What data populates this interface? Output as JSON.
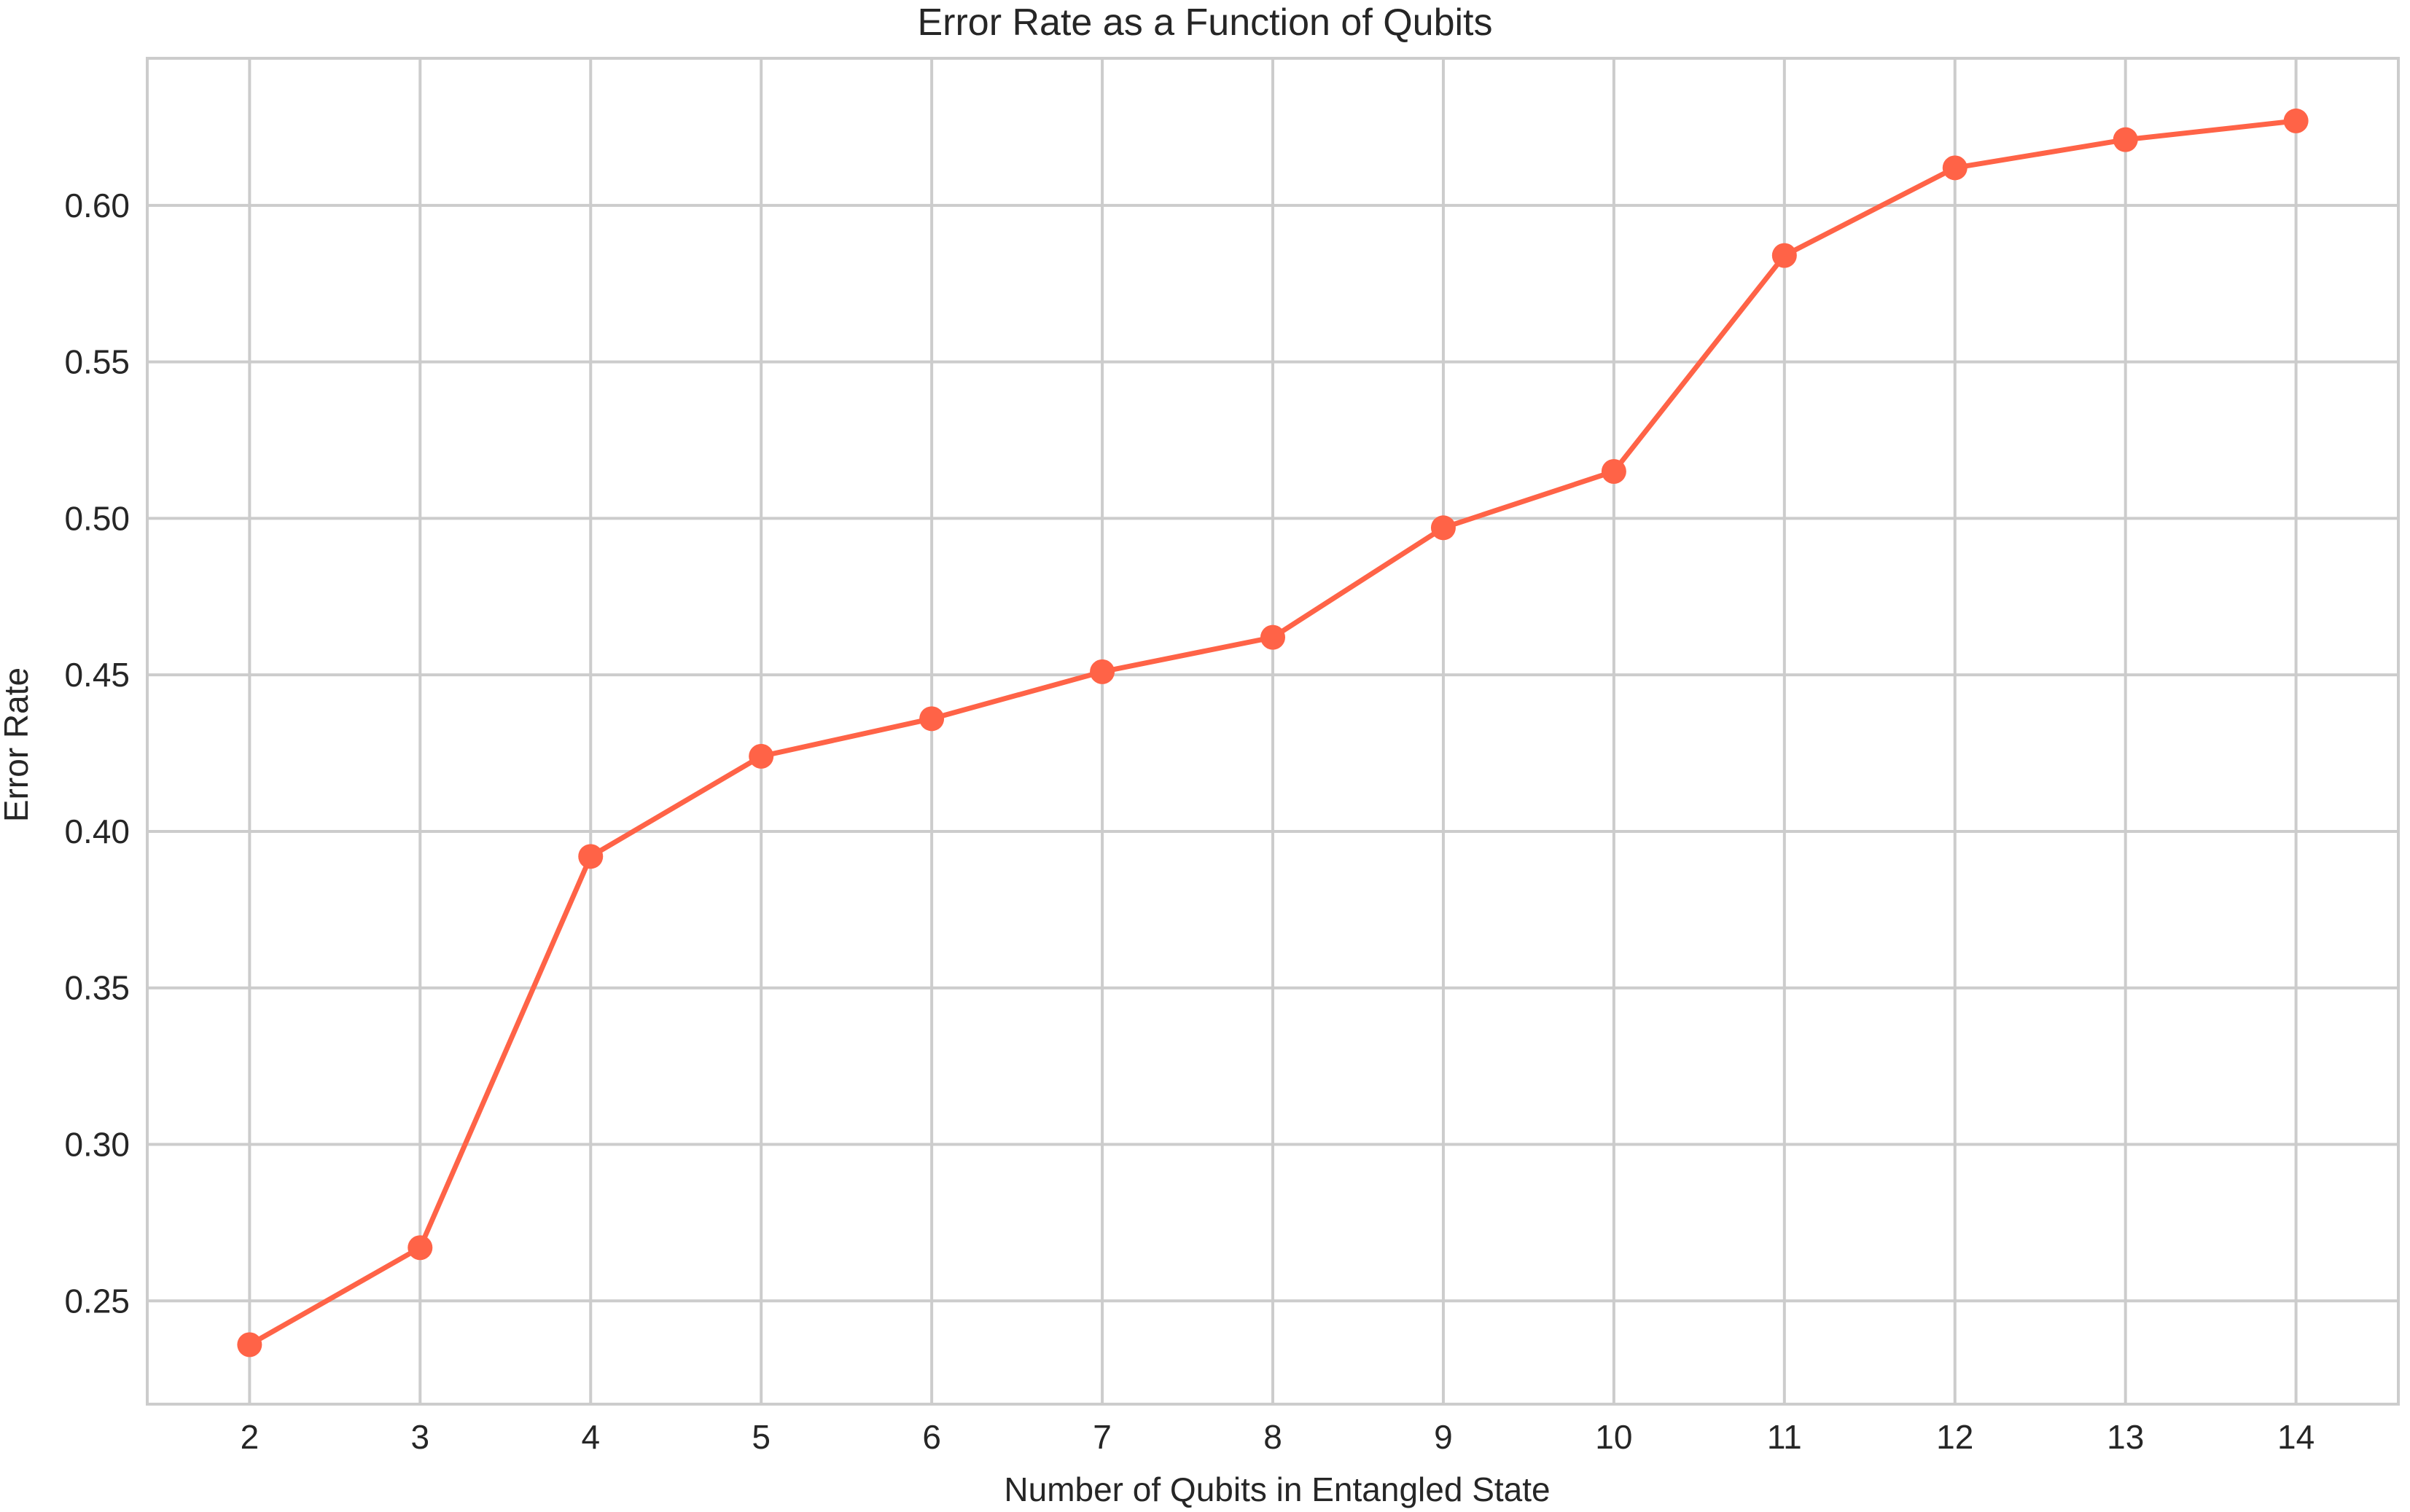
{
  "chart_data": {
    "type": "line",
    "title": "Error Rate as a Function of Qubits",
    "xlabel": "Number of Qubits in Entangled State",
    "ylabel": "Error Rate",
    "x": [
      2,
      3,
      4,
      5,
      6,
      7,
      8,
      9,
      10,
      11,
      12,
      13,
      14
    ],
    "xticks": [
      "2",
      "3",
      "4",
      "5",
      "6",
      "7",
      "8",
      "9",
      "10",
      "11",
      "12",
      "13",
      "14"
    ],
    "xlim": [
      1.4,
      14.6
    ],
    "ylim": [
      0.217,
      0.647
    ],
    "yticks": [
      0.25,
      0.3,
      0.35,
      0.4,
      0.45,
      0.5,
      0.55,
      0.6
    ],
    "ytick_labels": [
      "0.25",
      "0.30",
      "0.35",
      "0.40",
      "0.45",
      "0.50",
      "0.55",
      "0.60"
    ],
    "grid": true,
    "series": [
      {
        "color": "#ff6347",
        "marker": "circle",
        "values": [
          0.236,
          0.267,
          0.392,
          0.424,
          0.436,
          0.451,
          0.462,
          0.497,
          0.515,
          0.584,
          0.612,
          0.621,
          0.627
        ]
      }
    ]
  }
}
